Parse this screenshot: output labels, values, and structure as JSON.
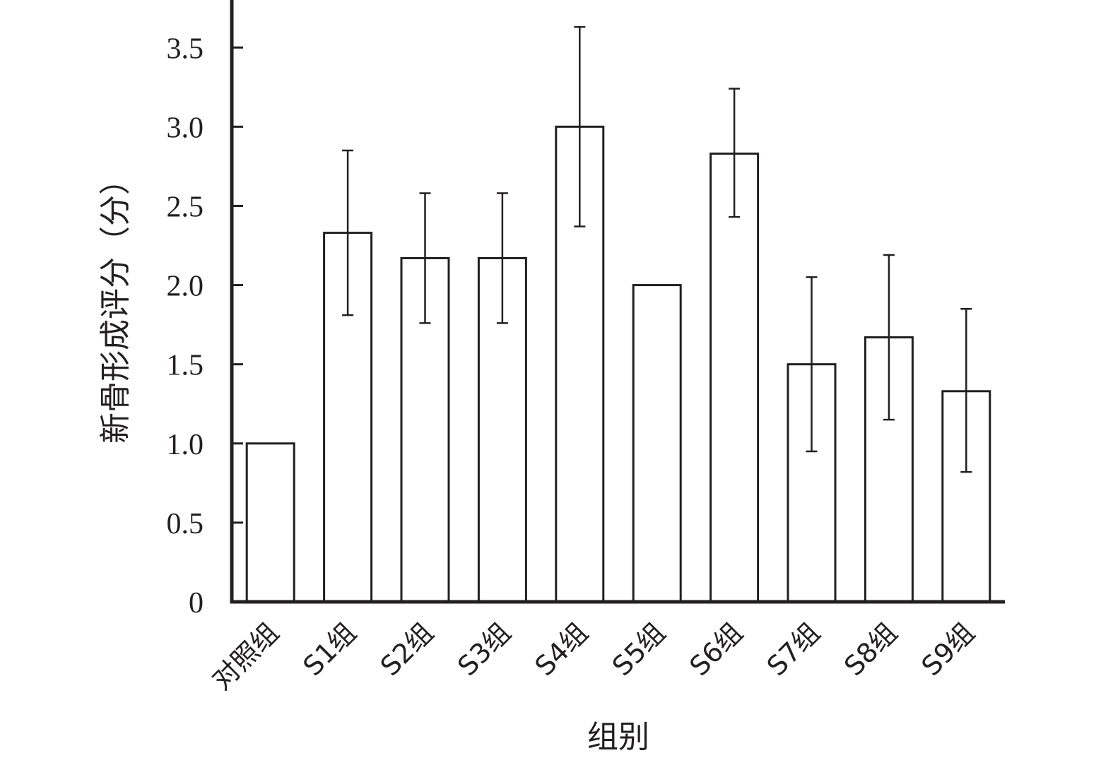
{
  "chart_data": {
    "type": "bar",
    "categories": [
      "对照组",
      "S1组",
      "S2组",
      "S3组",
      "S4组",
      "S5组",
      "S6组",
      "S7组",
      "S8组",
      "S9组"
    ],
    "values": [
      1.0,
      2.33,
      2.17,
      2.17,
      3.0,
      2.0,
      2.83,
      1.5,
      1.67,
      1.33
    ],
    "error_upper": [
      null,
      2.85,
      2.58,
      2.58,
      3.63,
      null,
      3.24,
      2.05,
      2.19,
      1.85
    ],
    "error_lower": [
      null,
      1.81,
      1.76,
      1.76,
      2.37,
      null,
      2.43,
      0.95,
      1.15,
      0.82
    ],
    "yticks": [
      "0",
      "0.5",
      "1.0",
      "1.5",
      "2.0",
      "2.5",
      "3.0",
      "3.5"
    ],
    "ytick_values": [
      0,
      0.5,
      1.0,
      1.5,
      2.0,
      2.5,
      3.0,
      3.5
    ],
    "title": "",
    "xlabel": "组别",
    "ylabel": "新骨形成评分（分）",
    "ylim": [
      0,
      3.8
    ],
    "grid": false,
    "colors": {
      "bar_fill": "#ffffff",
      "stroke": "#231f20"
    }
  }
}
